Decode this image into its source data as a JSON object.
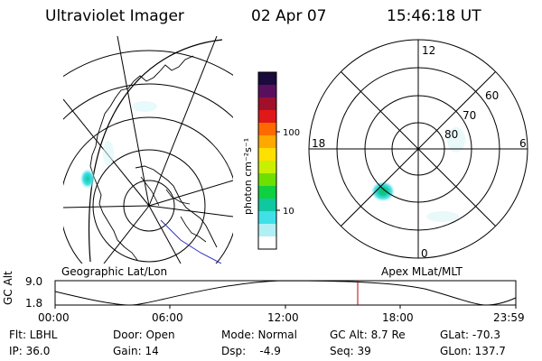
{
  "header": {
    "instrument": "Ultraviolet Imager",
    "date": "02 Apr 07",
    "time": "15:46:18 UT"
  },
  "colorbar": {
    "unit_label": "photon cm⁻²s⁻¹",
    "ticks": [
      "100",
      "10"
    ],
    "colors": [
      "#1b0a3c",
      "#5a0f5e",
      "#a0102a",
      "#e01818",
      "#ff6a00",
      "#ffa800",
      "#ffe000",
      "#c8f000",
      "#6ee000",
      "#10d040",
      "#10c8a0",
      "#40e0e8",
      "#b0f0f4",
      "#ffffff"
    ]
  },
  "polar_plot": {
    "mlt_labels": {
      "top": "12",
      "bottom": "0",
      "left": "18",
      "right": "6"
    },
    "lat_labels": [
      "60",
      "70",
      "80"
    ]
  },
  "map_labels": {
    "left": "Geographic Lat/Lon",
    "right": "Apex MLat/MLT"
  },
  "altitude_plot": {
    "axis_title": "GC Alt",
    "y_ticks": [
      "9.0",
      "1.8"
    ],
    "x_ticks": [
      "00:00",
      "06:00",
      "12:00",
      "18:00",
      "23:59"
    ],
    "current_time_marker_color": "#c00000"
  },
  "footer": {
    "row1": [
      "Flt: LBHL",
      "Door: Open",
      "Mode: Normal",
      "GC Alt: 8.7 Re",
      "GLat: -70.3"
    ],
    "row2": [
      "IP: 36.0",
      "Gain: 14",
      "Dsp:    -4.9",
      "Seq: 39",
      "GLon: 137.7"
    ]
  }
}
